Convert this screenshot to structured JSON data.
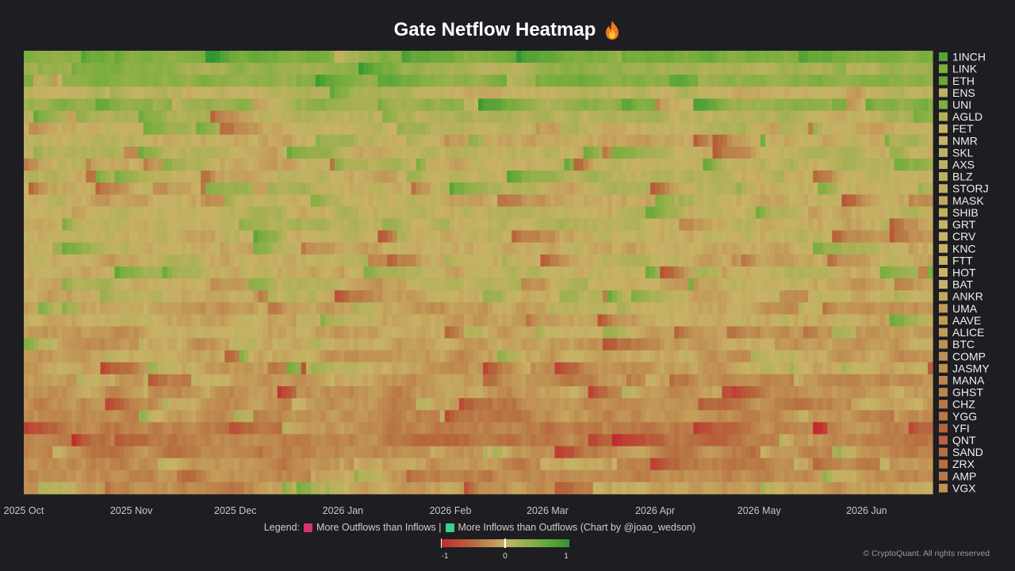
{
  "title": "Gate Netflow Heatmap",
  "title_icon": "fire-icon",
  "legend": {
    "prefix": "Legend:",
    "outflow_label": "More Outflows than Inflows |",
    "inflow_label": "More Inflows than Outflows (Chart by @joao_wedson)",
    "outflow_color": "#d6336c",
    "inflow_color": "#3ccf8e"
  },
  "colorbar": {
    "min_label": "-1",
    "mid_label": "0",
    "max_label": "1"
  },
  "copyright": "© CryptoQuant. All rights reserved",
  "colors": {
    "negative": "#c22a2f",
    "neutral": "#c8b266",
    "positive": "#2f9630",
    "background": "#1d1d22"
  },
  "chart_data": {
    "type": "heatmap",
    "title": "Gate Netflow Heatmap",
    "value_range": [
      -1,
      1
    ],
    "x_tick_labels": [
      "2025 Oct",
      "2025 Nov",
      "2025 Dec",
      "2026 Jan",
      "2026 Feb",
      "2026 Mar",
      "2026 Apr",
      "2026 May",
      "2026 Jun"
    ],
    "x_range": [
      "2025-10-01",
      "2026-06-20"
    ],
    "rows": [
      "1INCH",
      "LINK",
      "ETH",
      "ENS",
      "UNI",
      "AGLD",
      "FET",
      "NMR",
      "SKL",
      "AXS",
      "BLZ",
      "STORJ",
      "MASK",
      "SHIB",
      "GRT",
      "CRV",
      "KNC",
      "FTT",
      "HOT",
      "BAT",
      "ANKR",
      "UMA",
      "AAVE",
      "ALICE",
      "BTC",
      "COMP",
      "JASMY",
      "MANA",
      "GHST",
      "CHZ",
      "YGG",
      "YFI",
      "QNT",
      "SAND",
      "ZRX",
      "AMP",
      "VGX"
    ],
    "row_mean_netflow": [
      0.45,
      0.3,
      0.4,
      0.05,
      0.3,
      0.1,
      0.0,
      0.0,
      0.05,
      0.05,
      0.05,
      0.05,
      -0.05,
      0.05,
      0.0,
      0.0,
      0.0,
      0.0,
      0.0,
      0.0,
      -0.05,
      -0.1,
      -0.1,
      -0.1,
      -0.15,
      -0.15,
      -0.15,
      -0.2,
      -0.2,
      -0.25,
      -0.25,
      -0.35,
      -0.35,
      -0.3,
      -0.3,
      -0.25,
      -0.15
    ]
  }
}
